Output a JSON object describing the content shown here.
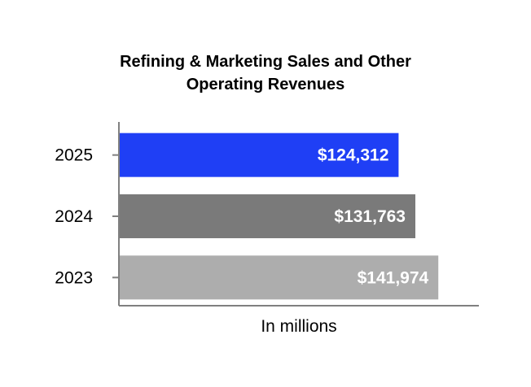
{
  "chart_data": {
    "type": "bar",
    "orientation": "horizontal",
    "title_lines": [
      "Refining & Marketing Sales and Other",
      "Operating Revenues"
    ],
    "xlabel": "In millions",
    "ylabel": "",
    "categories": [
      "2025",
      "2024",
      "2023"
    ],
    "values": [
      124312,
      131763,
      141974
    ],
    "value_labels": [
      "$124,312",
      "$131,763",
      "$141,974"
    ],
    "colors": [
      "#1f3ff5",
      "#7a7a7a",
      "#adadad"
    ],
    "xlim": [
      0,
      160000
    ],
    "grid": false,
    "legend": "none"
  }
}
